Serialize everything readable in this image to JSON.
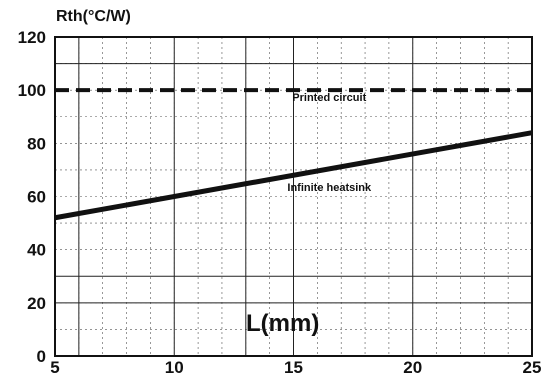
{
  "chart_data": {
    "type": "line",
    "ylabel": "Rth(°C/W)",
    "xlabel": "L(mm)",
    "xlim": [
      5,
      25
    ],
    "ylim": [
      0,
      120
    ],
    "x_ticks": [
      "5",
      "10",
      "15",
      "20",
      "25"
    ],
    "y_ticks": [
      "0",
      "20",
      "40",
      "60",
      "80",
      "100",
      "120"
    ],
    "grid": true,
    "series": [
      {
        "name": "Printed circuit",
        "style": "dashed",
        "x": [
          5,
          25
        ],
        "y": [
          100,
          100
        ]
      },
      {
        "name": "Infinite heatsink",
        "style": "solid",
        "x": [
          5,
          25
        ],
        "y": [
          52,
          84
        ]
      }
    ],
    "annotations": [
      {
        "text": "Printed circuit",
        "x": 16.5,
        "y": 96
      },
      {
        "text": "Infinite heatsink",
        "x": 16.5,
        "y": 62
      }
    ]
  }
}
